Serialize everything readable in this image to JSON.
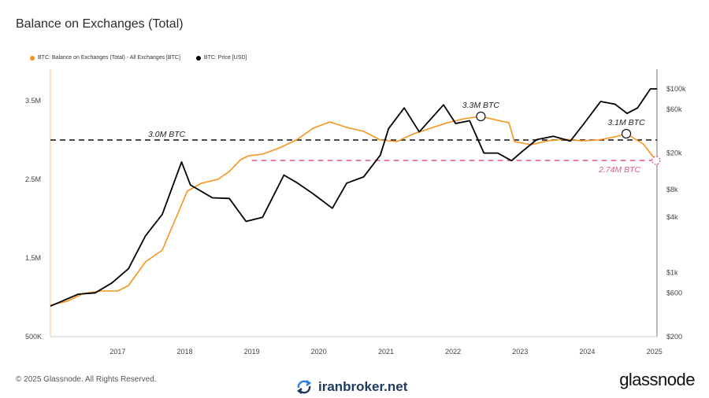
{
  "header": {
    "title": "Balance on Exchanges (Total)"
  },
  "legend": {
    "items": [
      {
        "label": "BTC: Balance on Exchanges (Total) - All Exchanges [BTC]",
        "color": "#f7931a"
      },
      {
        "label": "BTC: Price [USD]",
        "color": "#000000"
      }
    ]
  },
  "footer": {
    "copyright": "© 2025 Glassnode. All Rights Reserved.",
    "brand": "glassnode"
  },
  "watermark": {
    "text": "iranbroker.net",
    "icon": "refresh-arrows-icon"
  },
  "chart_data": {
    "type": "line",
    "title": "Balance on Exchanges (Total)",
    "x_ticks": [
      "2017",
      "2018",
      "2019",
      "2020",
      "2021",
      "2022",
      "2023",
      "2024",
      "2025"
    ],
    "x_range": [
      "2016-01-01",
      "2025-01-15"
    ],
    "left_axis": {
      "ticks": [
        "500K",
        "1.5M",
        "2.5M",
        "3.5M"
      ],
      "tick_values": [
        500000,
        1500000,
        2500000,
        3500000
      ],
      "ylim": [
        500000,
        3500000
      ]
    },
    "right_axis": {
      "scale": "log",
      "ticks": [
        "$200",
        "$600",
        "$1k",
        "$4k",
        "$8k",
        "$20k",
        "$60k",
        "$100k"
      ],
      "tick_values": [
        200,
        600,
        1000,
        4000,
        8000,
        20000,
        60000,
        100000
      ]
    },
    "series": [
      {
        "name": "BTC: Balance on Exchanges (Total) - All Exchanges [BTC]",
        "color": "#f7931a",
        "axis": "left",
        "points": [
          [
            "2016-01-01",
            900000
          ],
          [
            "2016-04-01",
            950000
          ],
          [
            "2016-07-01",
            1050000
          ],
          [
            "2016-10-01",
            1080000
          ],
          [
            "2017-01-01",
            1080000
          ],
          [
            "2017-03-01",
            1150000
          ],
          [
            "2017-06-01",
            1450000
          ],
          [
            "2017-09-01",
            1600000
          ],
          [
            "2017-12-01",
            2100000
          ],
          [
            "2018-01-15",
            2350000
          ],
          [
            "2018-04-01",
            2450000
          ],
          [
            "2018-07-01",
            2500000
          ],
          [
            "2018-09-01",
            2600000
          ],
          [
            "2018-11-01",
            2750000
          ],
          [
            "2018-12-15",
            2800000
          ],
          [
            "2019-03-01",
            2820000
          ],
          [
            "2019-06-01",
            2900000
          ],
          [
            "2019-09-01",
            3000000
          ],
          [
            "2019-12-01",
            3150000
          ],
          [
            "2020-03-01",
            3230000
          ],
          [
            "2020-06-01",
            3160000
          ],
          [
            "2020-09-01",
            3110000
          ],
          [
            "2020-12-01",
            3000000
          ],
          [
            "2021-03-01",
            2980000
          ],
          [
            "2021-06-01",
            3080000
          ],
          [
            "2021-09-01",
            3150000
          ],
          [
            "2021-12-01",
            3220000
          ],
          [
            "2022-03-01",
            3270000
          ],
          [
            "2022-06-01",
            3300000
          ],
          [
            "2022-09-01",
            3250000
          ],
          [
            "2022-11-01",
            3220000
          ],
          [
            "2022-12-01",
            2980000
          ],
          [
            "2023-03-01",
            2940000
          ],
          [
            "2023-06-01",
            2990000
          ],
          [
            "2023-09-01",
            3010000
          ],
          [
            "2023-12-01",
            2990000
          ],
          [
            "2024-03-01",
            3000000
          ],
          [
            "2024-06-01",
            3040000
          ],
          [
            "2024-08-01",
            3080000
          ],
          [
            "2024-11-01",
            2950000
          ],
          [
            "2025-01-10",
            2740000
          ]
        ]
      },
      {
        "name": "BTC: Price [USD]",
        "color": "#000000",
        "axis": "right",
        "points": [
          [
            "2016-01-01",
            430
          ],
          [
            "2016-06-01",
            580
          ],
          [
            "2016-09-01",
            600
          ],
          [
            "2016-12-01",
            770
          ],
          [
            "2017-03-01",
            1100
          ],
          [
            "2017-06-01",
            2500
          ],
          [
            "2017-09-01",
            4300
          ],
          [
            "2017-12-15",
            16000
          ],
          [
            "2018-02-01",
            9000
          ],
          [
            "2018-06-01",
            6500
          ],
          [
            "2018-09-01",
            6400
          ],
          [
            "2018-12-01",
            3600
          ],
          [
            "2019-03-01",
            4000
          ],
          [
            "2019-06-25",
            11500
          ],
          [
            "2019-09-01",
            9600
          ],
          [
            "2019-12-01",
            7200
          ],
          [
            "2020-03-15",
            5000
          ],
          [
            "2020-06-01",
            9400
          ],
          [
            "2020-09-01",
            11000
          ],
          [
            "2020-12-01",
            19000
          ],
          [
            "2021-01-15",
            37000
          ],
          [
            "2021-04-10",
            62000
          ],
          [
            "2021-07-01",
            34000
          ],
          [
            "2021-11-10",
            67000
          ],
          [
            "2022-01-15",
            42000
          ],
          [
            "2022-04-01",
            45000
          ],
          [
            "2022-06-18",
            20000
          ],
          [
            "2022-09-01",
            20000
          ],
          [
            "2022-11-15",
            16500
          ],
          [
            "2023-01-15",
            21000
          ],
          [
            "2023-04-01",
            28000
          ],
          [
            "2023-07-01",
            30500
          ],
          [
            "2023-10-01",
            27000
          ],
          [
            "2023-12-15",
            42000
          ],
          [
            "2024-03-14",
            73000
          ],
          [
            "2024-06-01",
            68000
          ],
          [
            "2024-08-05",
            54000
          ],
          [
            "2024-10-01",
            62000
          ],
          [
            "2024-12-10",
            100000
          ],
          [
            "2025-01-15",
            100000
          ]
        ]
      }
    ],
    "reference_lines": [
      {
        "value": 3000000,
        "label": "3.0M BTC",
        "style": "dashed",
        "color": "#111111"
      },
      {
        "value": 2740000,
        "label": "2.74M BTC",
        "style": "dashed",
        "color": "#e05a78",
        "start": "2019-01-01"
      }
    ],
    "annotations": [
      {
        "label": "3.3M BTC",
        "date": "2022-06-01",
        "value": 3300000
      },
      {
        "label": "3.1M BTC",
        "date": "2024-08-01",
        "value": 3080000
      },
      {
        "label": "",
        "date": "2025-01-10",
        "value": 2740000,
        "marker": "dashed-circle"
      }
    ],
    "grid": false,
    "legend_position": "top-left"
  }
}
